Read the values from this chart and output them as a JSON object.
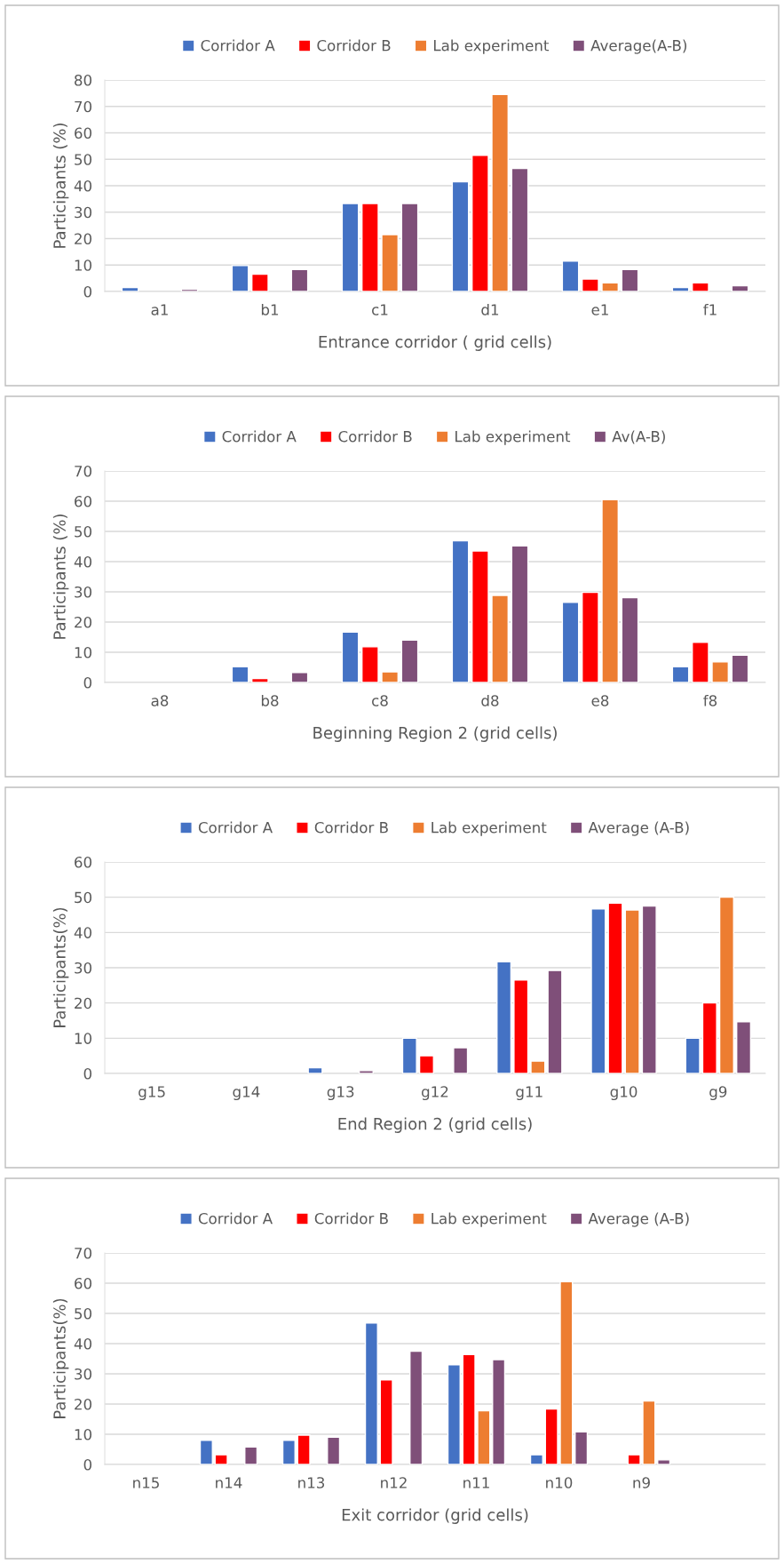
{
  "chart_data": [
    {
      "type": "bar",
      "xlabel": "Entrance corridor ( grid cells)",
      "ylabel": "Participants (%)",
      "categories": [
        "a1",
        "b1",
        "c1",
        "d1",
        "e1",
        "f1"
      ],
      "ylim": [
        0,
        80
      ],
      "yticks": [
        0,
        10,
        20,
        30,
        40,
        50,
        60,
        70,
        80
      ],
      "grid": "y",
      "legend": "top",
      "series": [
        {
          "name": "Corridor A",
          "color": "#4472c4",
          "values": [
            1.5,
            9.8,
            33.3,
            41.5,
            11.5,
            1.5
          ]
        },
        {
          "name": "Corridor B",
          "color": "#ff0000",
          "values": [
            null,
            6.5,
            33.3,
            51.5,
            4.7,
            3.3
          ]
        },
        {
          "name": "Lab experiment",
          "color": "#ed7d31",
          "values": [
            null,
            null,
            21.5,
            74.5,
            3.3,
            null
          ]
        },
        {
          "name": "Average(A-B)",
          "color": "#7f4f79",
          "values": [
            0.8,
            8.3,
            33.3,
            46.5,
            8.3,
            2.2
          ]
        }
      ]
    },
    {
      "type": "bar",
      "xlabel": "Beginning Region 2 (grid cells)",
      "ylabel": "Participants (%)",
      "categories": [
        "a8",
        "b8",
        "c8",
        "d8",
        "e8",
        "f8"
      ],
      "ylim": [
        0,
        70
      ],
      "yticks": [
        0,
        10,
        20,
        30,
        40,
        50,
        60,
        70
      ],
      "grid": "y",
      "legend": "top",
      "series": [
        {
          "name": "Corridor A",
          "color": "#4472c4",
          "values": [
            null,
            5.2,
            16.7,
            46.9,
            26.5,
            5.2
          ]
        },
        {
          "name": "Corridor B",
          "color": "#ff0000",
          "values": [
            null,
            1.3,
            11.8,
            43.5,
            29.8,
            13.3
          ]
        },
        {
          "name": "Lab experiment",
          "color": "#ed7d31",
          "values": [
            null,
            null,
            3.5,
            28.8,
            60.5,
            6.8
          ]
        },
        {
          "name": "Av(A-B)",
          "color": "#7f4f79",
          "values": [
            null,
            3.3,
            14,
            45.2,
            28.1,
            9
          ]
        }
      ]
    },
    {
      "type": "bar",
      "xlabel": "End Region 2 (grid cells)",
      "ylabel": "Participants(%)",
      "categories": [
        "g15",
        "g14",
        "g13",
        "g12",
        "g11",
        "g10",
        "g9"
      ],
      "ylim": [
        0,
        60
      ],
      "yticks": [
        0,
        10,
        20,
        30,
        40,
        50,
        60
      ],
      "grid": "y",
      "legend": "top",
      "series": [
        {
          "name": "Corridor A",
          "color": "#4472c4",
          "values": [
            null,
            null,
            1.6,
            10,
            31.7,
            46.7,
            10
          ]
        },
        {
          "name": "Corridor B",
          "color": "#ff0000",
          "values": [
            null,
            null,
            null,
            5,
            26.5,
            48.3,
            20
          ]
        },
        {
          "name": "Lab experiment",
          "color": "#ed7d31",
          "values": [
            null,
            null,
            null,
            null,
            3.5,
            46.4,
            50
          ]
        },
        {
          "name": "Average (A-B)",
          "color": "#7f4f79",
          "values": [
            null,
            null,
            0.8,
            7.3,
            29.2,
            47.5,
            14.7
          ]
        }
      ]
    },
    {
      "type": "bar",
      "xlabel": "Exit corridor (grid cells)",
      "ylabel": "Participants(%)",
      "categories": [
        "n15",
        "n14",
        "n13",
        "n12",
        "n11",
        "n10",
        "n9",
        null
      ],
      "ylim": [
        0,
        70
      ],
      "yticks": [
        0,
        10,
        20,
        30,
        40,
        50,
        60,
        70
      ],
      "grid": "y",
      "legend": "top",
      "series": [
        {
          "name": "Corridor A",
          "color": "#4472c4",
          "values": [
            null,
            8,
            8,
            46.8,
            33,
            3.2,
            null,
            null
          ]
        },
        {
          "name": "Corridor B",
          "color": "#ff0000",
          "values": [
            null,
            3.2,
            9.7,
            28,
            36.4,
            18.4,
            3.2,
            null
          ]
        },
        {
          "name": "Lab experiment",
          "color": "#ed7d31",
          "values": [
            null,
            null,
            null,
            null,
            17.8,
            60.5,
            21,
            null
          ]
        },
        {
          "name": "Average (A-B)",
          "color": "#7f4f79",
          "values": [
            null,
            5.8,
            9,
            37.5,
            34.7,
            10.8,
            1.5,
            null
          ]
        }
      ]
    }
  ]
}
